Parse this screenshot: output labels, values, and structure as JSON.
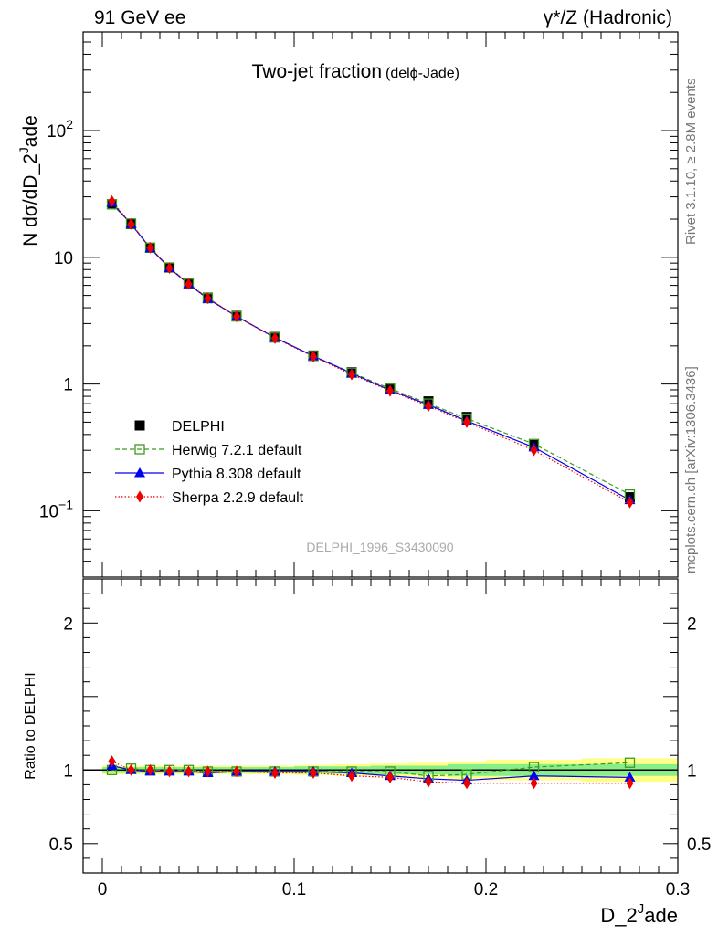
{
  "header": {
    "left": "91 GeV ee",
    "right": "γ*/Z (Hadronic)"
  },
  "side_labels": {
    "rivet": "Rivet 3.1.10, ≥ 2.8M events",
    "mcplots": "mcplots.cern.ch [arXiv:1306.3436]"
  },
  "chart_data": {
    "type": "line",
    "title": "Two-jet fraction",
    "subtitle": "(delϕ-Jade)",
    "watermark": "DELPHI_1996_S3430090",
    "xlabel": {
      "main": "D_2",
      "sup": "J",
      "tail": "ade"
    },
    "ylabel": "N dσ/dD_2^Jade",
    "ratio_ylabel": "Ratio to DELPHI",
    "xlim": [
      -0.01,
      0.3
    ],
    "ylim": [
      0.03,
      600
    ],
    "yscale": "log",
    "ratio_ylim": [
      0.3,
      2.3
    ],
    "x_ticks": [
      "0",
      "0.1",
      "0.2",
      "0.3"
    ],
    "y_ticks": [
      "10^-1",
      "1",
      "10",
      "10^2"
    ],
    "ratio_y_ticks": [
      "0.5",
      "1",
      "2"
    ],
    "legend_position": "middle-left",
    "x": [
      0.005,
      0.015,
      0.025,
      0.035,
      0.045,
      0.055,
      0.07,
      0.09,
      0.11,
      0.13,
      0.15,
      0.17,
      0.19,
      0.225,
      0.275
    ],
    "x_edges": [
      0.0,
      0.01,
      0.02,
      0.03,
      0.04,
      0.05,
      0.06,
      0.08,
      0.1,
      0.12,
      0.14,
      0.16,
      0.18,
      0.2,
      0.25,
      0.3
    ],
    "band_inner": [
      0.02,
      0.02,
      0.02,
      0.02,
      0.02,
      0.02,
      0.02,
      0.02,
      0.025,
      0.025,
      0.03,
      0.03,
      0.04,
      0.04,
      0.04
    ],
    "band_outer": [
      0.03,
      0.03,
      0.03,
      0.03,
      0.03,
      0.03,
      0.03,
      0.03,
      0.035,
      0.04,
      0.045,
      0.05,
      0.06,
      0.07,
      0.08
    ],
    "series": [
      {
        "name": "DELPHI",
        "color": "#000000",
        "marker": "square-filled",
        "line": "none",
        "values": [
          26.2,
          18.3,
          11.9,
          8.3,
          6.2,
          4.8,
          3.45,
          2.35,
          1.68,
          1.24,
          0.93,
          0.73,
          0.55,
          0.33,
          0.128
        ]
      },
      {
        "name": "Herwig 7.2.1 default",
        "color": "#3c9a1e",
        "marker": "square-open",
        "line": "dashed",
        "ratio": [
          1.0,
          1.01,
          1.0,
          1.0,
          1.0,
          0.99,
          0.99,
          0.99,
          0.99,
          0.99,
          0.99,
          0.96,
          0.97,
          1.02,
          1.05
        ]
      },
      {
        "name": "Pythia 8.308 default",
        "color": "#0000ee",
        "marker": "triangle",
        "line": "solid",
        "ratio": [
          1.03,
          1.0,
          0.99,
          0.99,
          0.99,
          0.98,
          0.99,
          0.99,
          0.99,
          0.98,
          0.96,
          0.94,
          0.93,
          0.96,
          0.95
        ]
      },
      {
        "name": "Sherpa 2.2.9 default",
        "color": "#ee0000",
        "marker": "diamond",
        "line": "dotted",
        "ratio": [
          1.06,
          1.0,
          1.0,
          0.99,
          0.99,
          0.99,
          0.99,
          0.98,
          0.98,
          0.96,
          0.95,
          0.92,
          0.91,
          0.91,
          0.91
        ]
      }
    ]
  }
}
